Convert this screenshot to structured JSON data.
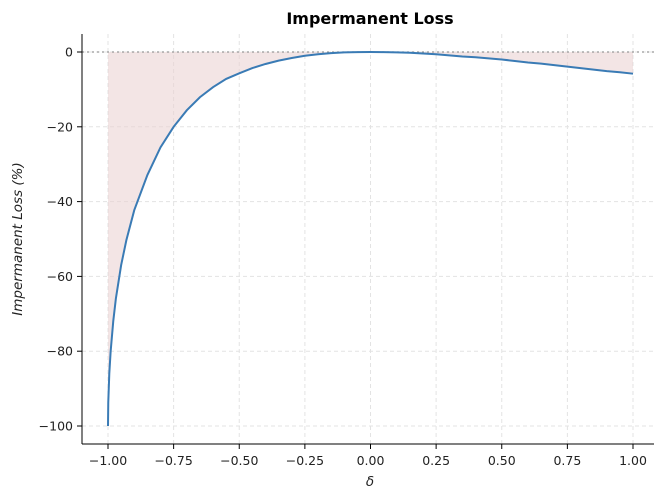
{
  "chart_data": {
    "type": "line",
    "title": "Impermanent Loss",
    "xlabel": "δ",
    "ylabel": "Impermanent Loss (%)",
    "xlim": [
      -1.0,
      1.0
    ],
    "ylim": [
      -105,
      5
    ],
    "x_ticks": [
      -1.0,
      -0.75,
      -0.5,
      -0.25,
      0.0,
      0.25,
      0.5,
      0.75,
      1.0
    ],
    "x_tick_labels": [
      "−1.00",
      "−0.75",
      "−0.50",
      "−0.25",
      "0.00",
      "0.25",
      "0.50",
      "0.75",
      "1.00"
    ],
    "y_ticks": [
      0,
      -20,
      -40,
      -60,
      -80,
      -100
    ],
    "y_tick_labels": [
      "0",
      "−20",
      "−40",
      "−60",
      "−80",
      "−100"
    ],
    "grid": true,
    "legend": "none",
    "reference_line_y": 0,
    "series": [
      {
        "x": [
          -1.0,
          -0.999,
          -0.995,
          -0.99,
          -0.98,
          -0.97,
          -0.95,
          -0.93,
          -0.9,
          -0.85,
          -0.8,
          -0.75,
          -0.7,
          -0.65,
          -0.6,
          -0.55,
          -0.5,
          -0.45,
          -0.4,
          -0.35,
          -0.3,
          -0.25,
          -0.2,
          -0.15,
          -0.1,
          -0.05,
          0.0,
          0.05,
          0.1,
          0.15,
          0.2,
          0.25,
          0.3,
          0.35,
          0.4,
          0.45,
          0.5,
          0.55,
          0.6,
          0.65,
          0.7,
          0.75,
          0.8,
          0.85,
          0.9,
          0.95,
          1.0
        ],
        "y": [
          -100.0,
          -93.7,
          -85.9,
          -80.1,
          -72.0,
          -65.9,
          -57.0,
          -50.3,
          -42.3,
          -32.9,
          -25.5,
          -20.0,
          -15.6,
          -12.1,
          -9.4,
          -7.2,
          -5.7,
          -4.3,
          -3.2,
          -2.3,
          -1.6,
          -1.0,
          -0.6,
          -0.3,
          -0.1,
          -0.03,
          0.0,
          -0.03,
          -0.1,
          -0.2,
          -0.4,
          -0.6,
          -0.9,
          -1.2,
          -1.4,
          -1.7,
          -2.0,
          -2.4,
          -2.8,
          -3.1,
          -3.5,
          -3.9,
          -4.3,
          -4.7,
          -5.1,
          -5.4,
          -5.8
        ],
        "color": "#3a7bb5",
        "fill_to_zero": true,
        "fill_color": "#ead0d0"
      }
    ]
  }
}
